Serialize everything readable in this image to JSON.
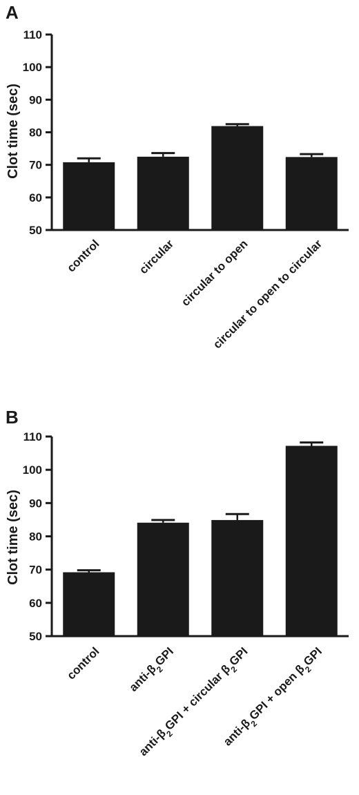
{
  "chart_data": [
    {
      "type": "bar",
      "panel": "A",
      "title": "",
      "xlabel": "",
      "ylabel": "Clot time (sec)",
      "ylim": [
        50,
        110
      ],
      "yticks": [
        50,
        60,
        70,
        80,
        90,
        100,
        110
      ],
      "categories": [
        "control",
        "circular",
        "circular  to open",
        "circular to open to circular"
      ],
      "series": [
        {
          "values": [
            70.8,
            72.5,
            81.9,
            72.4
          ],
          "errors": [
            1.2,
            1.1,
            0.6,
            0.9
          ]
        }
      ],
      "colors": {
        "bar": "#1a1a1a"
      }
    },
    {
      "type": "bar",
      "panel": "B",
      "title": "",
      "xlabel": "",
      "ylabel": "Clot time (sec)",
      "ylim": [
        50,
        110
      ],
      "yticks": [
        50,
        60,
        70,
        80,
        90,
        100,
        110
      ],
      "categories": [
        "control",
        "anti-β2GPI",
        "anti-β2GPI + circular β2GPI",
        "anti-β2GPI + open β2GPI"
      ],
      "series": [
        {
          "values": [
            69.2,
            84.1,
            84.9,
            107.2
          ],
          "errors": [
            0.6,
            0.8,
            1.8,
            1.0
          ]
        }
      ],
      "colors": {
        "bar": "#1a1a1a"
      }
    }
  ]
}
